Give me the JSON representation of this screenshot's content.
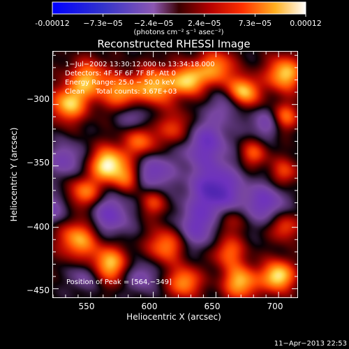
{
  "colorbar": {
    "tick_labels": [
      "-0.00012",
      "−7.3e−05",
      "−2.4e−05",
      "2.4e−05",
      "7.3e−05",
      "0.00012"
    ],
    "units": "(photons cm⁻² s⁻¹ asec⁻²)"
  },
  "chart_data": {
    "type": "heatmap",
    "title": "Reconstructed RHESSI Image",
    "xlabel": "Heliocentric X (arcsec)",
    "ylabel": "Heliocentric Y (arcsec)",
    "xlim": [
      520,
      715
    ],
    "ylim": [
      -457,
      -257
    ],
    "x_ticks": [
      550,
      600,
      650,
      700
    ],
    "y_ticks": [
      -300,
      -350,
      -400,
      -450
    ],
    "x_tick_labels": [
      "550",
      "600",
      "650",
      "700"
    ],
    "y_tick_labels": [
      "−300",
      "−350",
      "−400",
      "−450"
    ],
    "colorscale_range": [
      -0.00012,
      0.00012
    ],
    "peak_position": [
      564,
      -349
    ],
    "annotations": [
      "1−Jul−2002 13:30:12.000 to 13:34:18.000",
      "Detectors: 4F 5F 6F 7F 8F, Att 0",
      "Energy Range: 25.0 − 50.0 keV",
      "Clean     Total counts: 3.67E+03",
      "Position of Peak = [564,−349]"
    ],
    "blobs": [
      {
        "x": 564,
        "y": -349,
        "v": 1.0,
        "s": 10
      },
      {
        "x": 545,
        "y": -372,
        "v": 0.65,
        "s": 9
      },
      {
        "x": 532,
        "y": -300,
        "v": 0.8,
        "s": 10
      },
      {
        "x": 548,
        "y": -280,
        "v": 0.75,
        "s": 11
      },
      {
        "x": 575,
        "y": -290,
        "v": 0.7,
        "s": 10
      },
      {
        "x": 602,
        "y": -285,
        "v": 0.8,
        "s": 11
      },
      {
        "x": 628,
        "y": -280,
        "v": 0.85,
        "s": 9
      },
      {
        "x": 650,
        "y": -270,
        "v": 0.7,
        "s": 10
      },
      {
        "x": 672,
        "y": -290,
        "v": 0.9,
        "s": 9
      },
      {
        "x": 705,
        "y": -275,
        "v": 0.85,
        "s": 10
      },
      {
        "x": 705,
        "y": -310,
        "v": 0.6,
        "s": 8
      },
      {
        "x": 620,
        "y": -320,
        "v": 0.55,
        "s": 10
      },
      {
        "x": 590,
        "y": -330,
        "v": 0.6,
        "s": 10
      },
      {
        "x": 580,
        "y": -360,
        "v": 0.5,
        "s": 8
      },
      {
        "x": 680,
        "y": -340,
        "v": 0.5,
        "s": 8
      },
      {
        "x": 705,
        "y": -355,
        "v": 0.45,
        "s": 8
      },
      {
        "x": 540,
        "y": -410,
        "v": 0.75,
        "s": 11
      },
      {
        "x": 565,
        "y": -430,
        "v": 0.8,
        "s": 10
      },
      {
        "x": 610,
        "y": -415,
        "v": 0.65,
        "s": 10
      },
      {
        "x": 625,
        "y": -445,
        "v": 0.7,
        "s": 9
      },
      {
        "x": 660,
        "y": -420,
        "v": 0.55,
        "s": 9
      },
      {
        "x": 670,
        "y": -445,
        "v": 0.8,
        "s": 10
      },
      {
        "x": 700,
        "y": -440,
        "v": 0.95,
        "s": 9
      },
      {
        "x": 705,
        "y": -400,
        "v": 0.5,
        "s": 8
      },
      {
        "x": 600,
        "y": -380,
        "v": 0.45,
        "s": 8
      },
      {
        "x": 660,
        "y": -395,
        "v": 0.4,
        "s": 8
      },
      {
        "x": 640,
        "y": -330,
        "v": -0.6,
        "s": 14
      },
      {
        "x": 650,
        "y": -370,
        "v": -0.75,
        "s": 15
      },
      {
        "x": 635,
        "y": -400,
        "v": -0.5,
        "s": 12
      },
      {
        "x": 600,
        "y": -355,
        "v": -0.55,
        "s": 11
      },
      {
        "x": 565,
        "y": -390,
        "v": -0.55,
        "s": 12
      },
      {
        "x": 530,
        "y": -345,
        "v": -0.45,
        "s": 10
      },
      {
        "x": 585,
        "y": -310,
        "v": -0.4,
        "s": 9
      },
      {
        "x": 690,
        "y": -380,
        "v": -0.55,
        "s": 11
      },
      {
        "x": 690,
        "y": -315,
        "v": -0.45,
        "s": 9
      },
      {
        "x": 590,
        "y": -440,
        "v": -0.4,
        "s": 9
      },
      {
        "x": 545,
        "y": -440,
        "v": -0.35,
        "s": 8
      },
      {
        "x": 520,
        "y": -385,
        "v": -0.4,
        "s": 9
      },
      {
        "x": 660,
        "y": -300,
        "v": -0.4,
        "s": 9
      }
    ]
  },
  "footer": {
    "timestamp": "11−Apr−2013 22:53"
  }
}
